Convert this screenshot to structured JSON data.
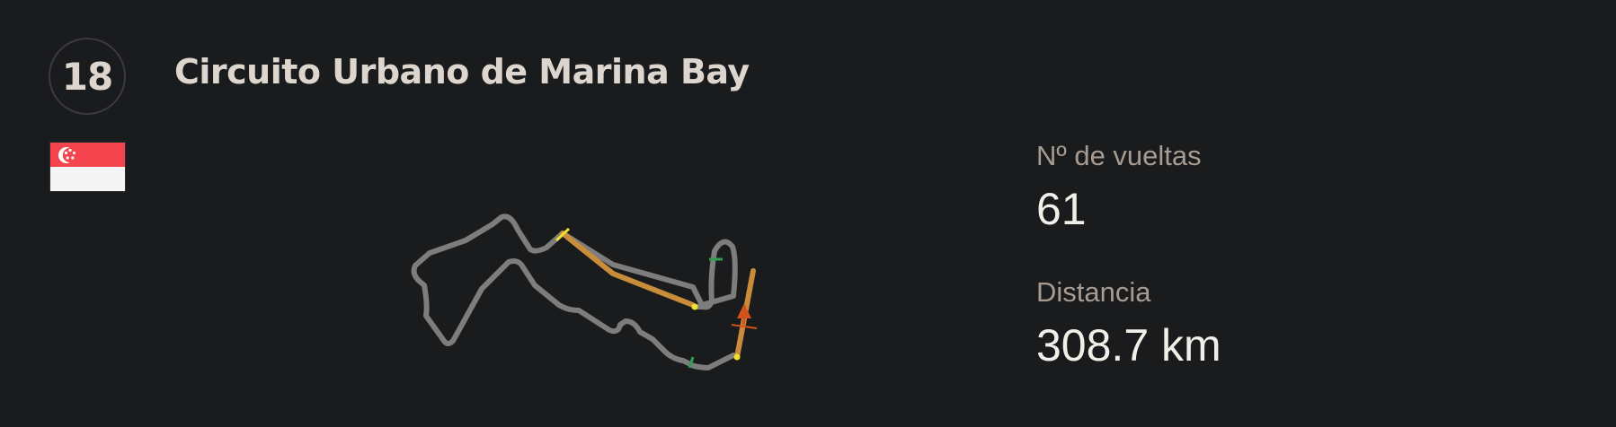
{
  "round": {
    "number": "18"
  },
  "circuit": {
    "name": "Circuito Urbano de Marina Bay",
    "country_flag": "singapore-flag"
  },
  "stats": {
    "laps_label": "Nº de vueltas",
    "laps_value": "61",
    "distance_label": "Distancia",
    "distance_value": "308.7 km"
  },
  "colors": {
    "background": "#1a1b1d",
    "track": "#7d7d7d",
    "drs_zone": "#c98c3a",
    "direction_arrow": "#d2521a",
    "sector_marker": "#2e9e4f",
    "detection_point": "#f2e030",
    "label": "#a69c91",
    "value": "#f2eee8"
  },
  "icons": {
    "track_map": "track-map-icon",
    "direction": "direction-arrow-icon"
  }
}
